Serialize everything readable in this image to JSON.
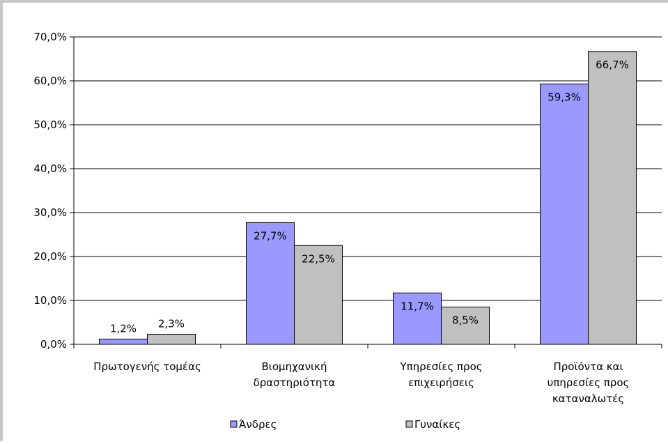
{
  "chart_data": {
    "type": "bar",
    "categories": [
      [
        "Πρωτογενής τομέας"
      ],
      [
        "Βιομηχανική",
        "δραστηριότητα"
      ],
      [
        "Υπηρεσίες προς",
        "επιχειρήσεις"
      ],
      [
        "Προϊόντα και",
        "υπηρεσίες προς",
        "καταναλωτές"
      ]
    ],
    "series": [
      {
        "name": "Άνδρες",
        "color": "#9999ff",
        "values": [
          1.2,
          27.7,
          11.7,
          59.3
        ],
        "labels": [
          "1,2%",
          "27,7%",
          "11,7%",
          "59,3%"
        ]
      },
      {
        "name": "Γυναίκες",
        "color": "#c0c0c0",
        "values": [
          2.3,
          22.5,
          8.5,
          66.7
        ],
        "labels": [
          "2,3%",
          "22,5%",
          "8,5%",
          "66,7%"
        ]
      }
    ],
    "ylim": [
      0,
      70
    ],
    "yticks": [
      0,
      10,
      20,
      30,
      40,
      50,
      60,
      70
    ],
    "ytick_labels": [
      "0,0%",
      "10,0%",
      "20,0%",
      "30,0%",
      "40,0%",
      "50,0%",
      "60,0%",
      "70,0%"
    ],
    "grid": true,
    "legend_position": "bottom",
    "title": "",
    "xlabel": "",
    "ylabel": ""
  }
}
